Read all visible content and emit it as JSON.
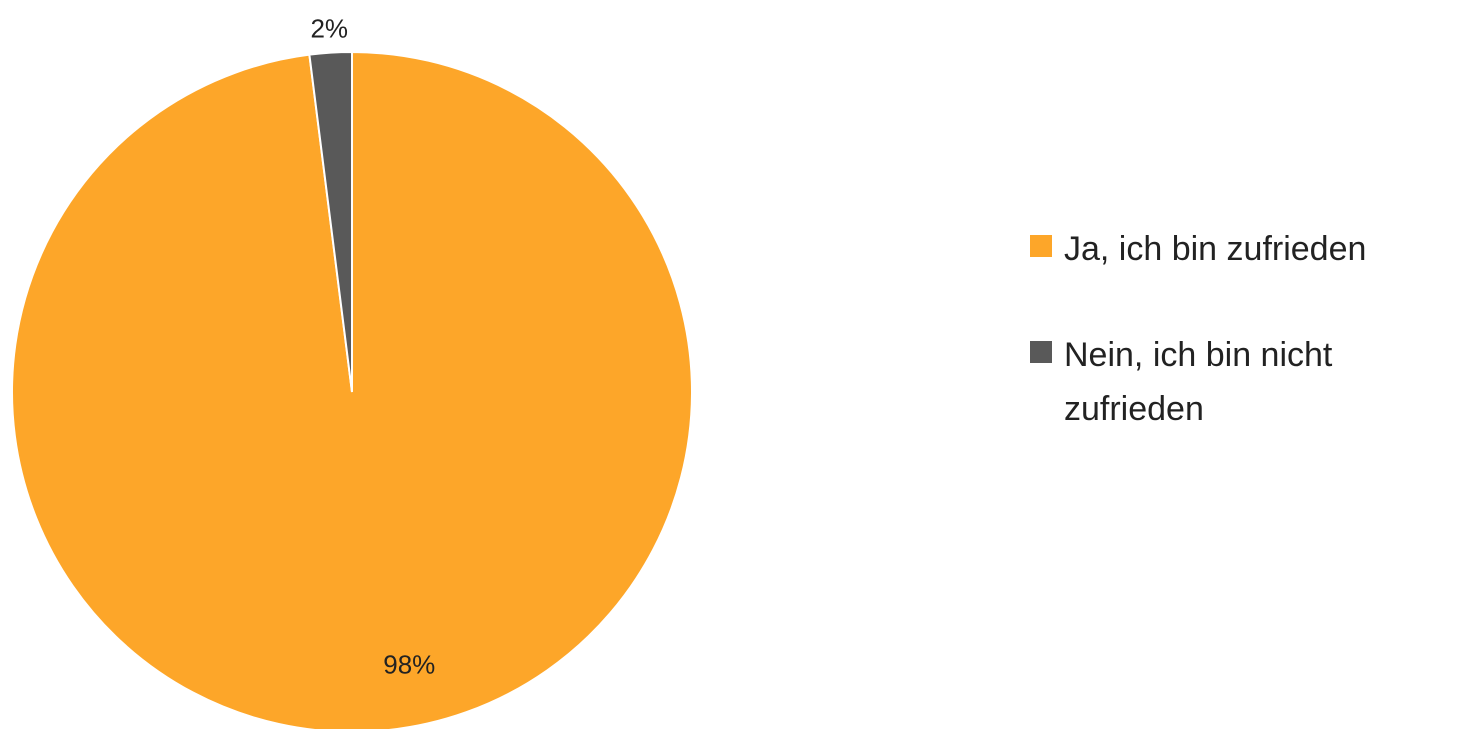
{
  "chart_data": {
    "type": "pie",
    "categories": [
      "Ja, ich bin zufrieden",
      "Nein, ich bin nicht zufrieden"
    ],
    "values": [
      98,
      2
    ],
    "value_labels": [
      "98%",
      "2%"
    ],
    "colors": [
      "#FDA629",
      "#595959"
    ],
    "legend": "right"
  }
}
